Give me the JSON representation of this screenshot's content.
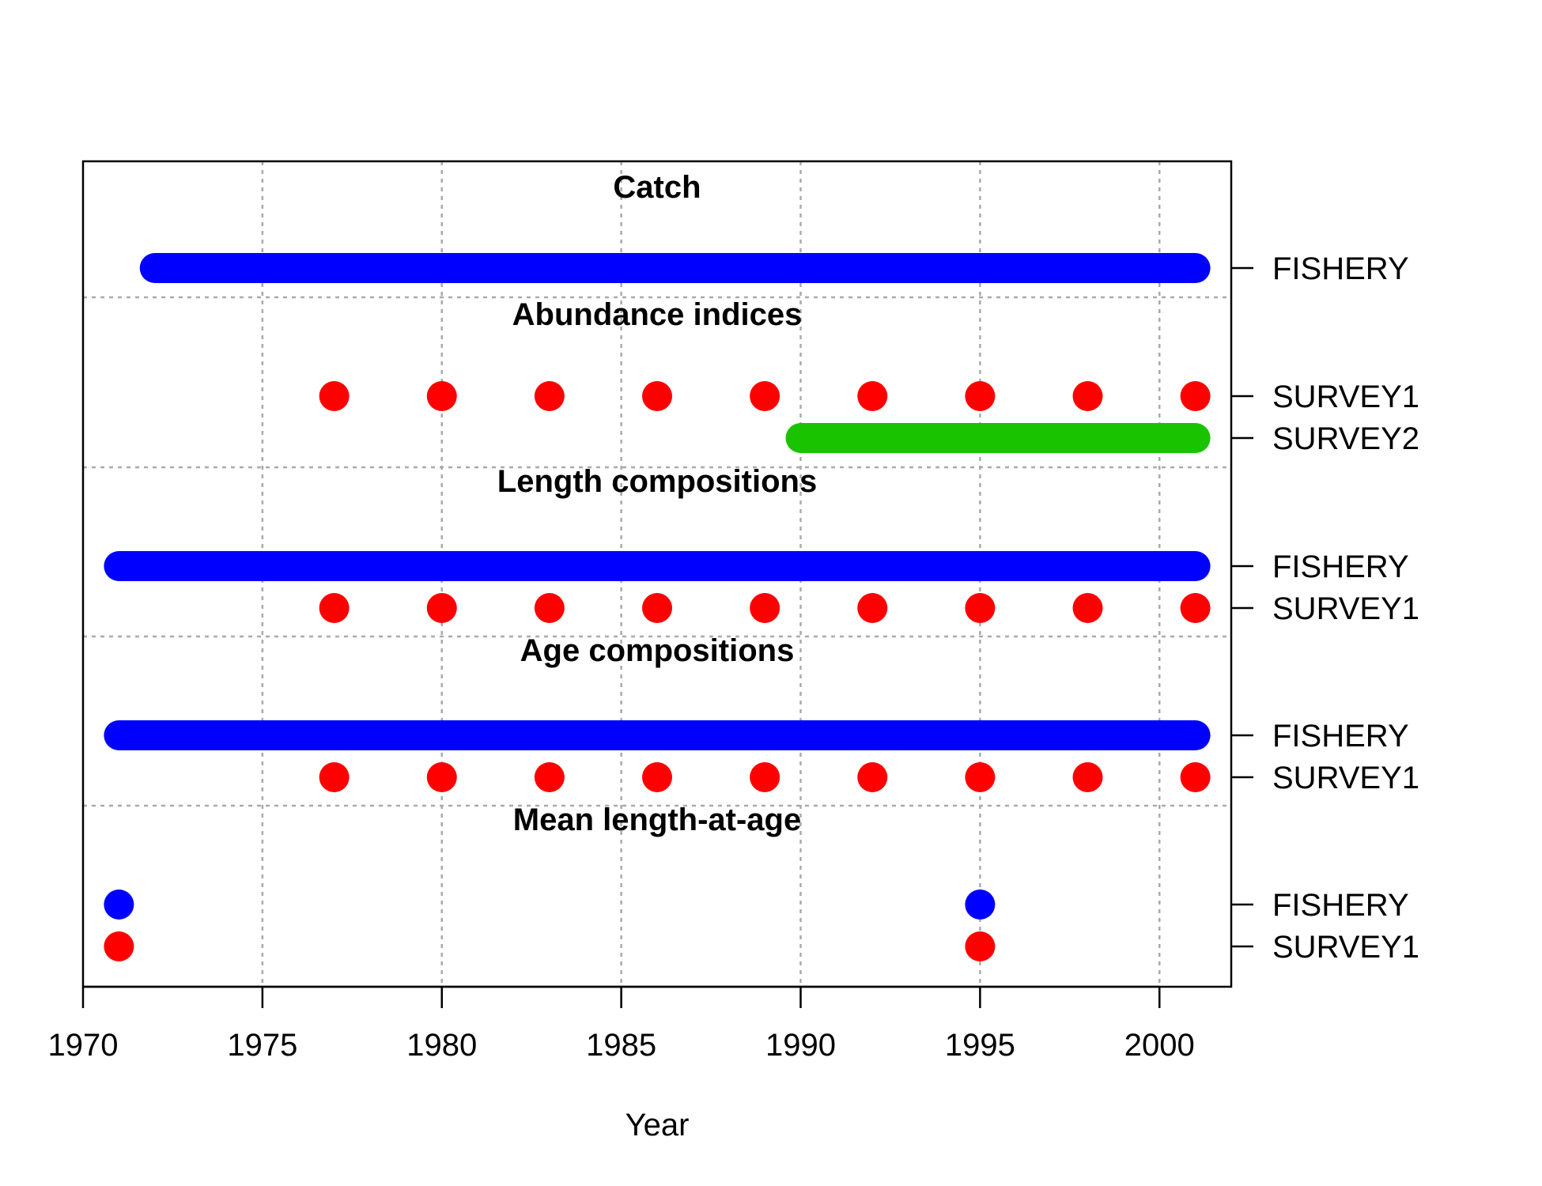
{
  "chart_data": {
    "type": "timeline",
    "xlabel": "Year",
    "xlim": [
      1970,
      2002
    ],
    "x_ticks": [
      1970,
      1975,
      1980,
      1985,
      1990,
      1995,
      2000
    ],
    "grid": true,
    "colors": {
      "FISHERY": "#0000ff",
      "SURVEY1": "#ff0000",
      "SURVEY2": "#19c300"
    },
    "sections": [
      {
        "title": "Catch",
        "rows": [
          {
            "name": "FISHERY",
            "kind": "range",
            "from": 1972,
            "to": 2001
          }
        ]
      },
      {
        "title": "Abundance indices",
        "rows": [
          {
            "name": "SURVEY1",
            "kind": "points",
            "years": [
              1977,
              1980,
              1983,
              1986,
              1989,
              1992,
              1995,
              1998,
              2001
            ]
          },
          {
            "name": "SURVEY2",
            "kind": "range",
            "from": 1990,
            "to": 2001
          }
        ]
      },
      {
        "title": "Length compositions",
        "rows": [
          {
            "name": "FISHERY",
            "kind": "range",
            "from": 1971,
            "to": 2001
          },
          {
            "name": "SURVEY1",
            "kind": "points",
            "years": [
              1977,
              1980,
              1983,
              1986,
              1989,
              1992,
              1995,
              1998,
              2001
            ]
          }
        ]
      },
      {
        "title": "Age compositions",
        "rows": [
          {
            "name": "FISHERY",
            "kind": "range",
            "from": 1971,
            "to": 2001
          },
          {
            "name": "SURVEY1",
            "kind": "points",
            "years": [
              1977,
              1980,
              1983,
              1986,
              1989,
              1992,
              1995,
              1998,
              2001
            ]
          }
        ]
      },
      {
        "title": "Mean length-at-age",
        "rows": [
          {
            "name": "FISHERY",
            "kind": "points",
            "years": [
              1971,
              1995
            ]
          },
          {
            "name": "SURVEY1",
            "kind": "points",
            "years": [
              1971,
              1995
            ]
          }
        ]
      }
    ]
  }
}
